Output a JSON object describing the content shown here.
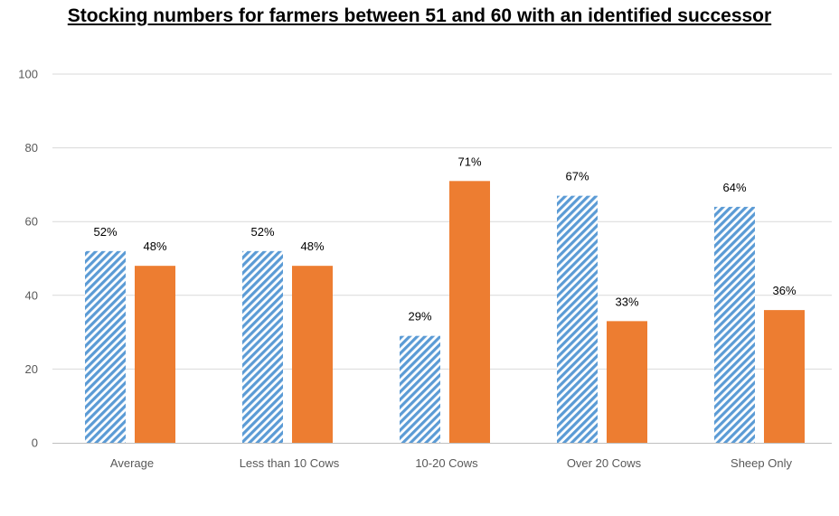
{
  "chart_data": {
    "type": "bar",
    "title": "Stocking numbers for farmers between 51 and 60 with an identified successor",
    "xlabel": "",
    "ylabel": "",
    "categories": [
      "Average",
      "Less than 10 Cows",
      "10-20 Cows",
      "Over 20 Cows",
      "Sheep Only"
    ],
    "series": [
      {
        "values": [
          52,
          52,
          29,
          67,
          64
        ],
        "labels": [
          "52%",
          "52%",
          "29%",
          "67%",
          "64%"
        ],
        "color": "#5B9BD5",
        "pattern": "diagonal-stripes"
      },
      {
        "values": [
          48,
          48,
          71,
          33,
          36
        ],
        "labels": [
          "48%",
          "48%",
          "71%",
          "33%",
          "36%"
        ],
        "color": "#ED7D31",
        "pattern": "solid"
      }
    ],
    "ylim": [
      0,
      100
    ],
    "yticks": [
      "0",
      "20",
      "40",
      "60",
      "80",
      "100"
    ],
    "ytick_values": [
      0,
      20,
      40,
      60,
      80,
      100
    ],
    "grid": true,
    "legend": "none",
    "gridline_color": "#D9D9D9",
    "axis_color": "#BFBFBF"
  }
}
